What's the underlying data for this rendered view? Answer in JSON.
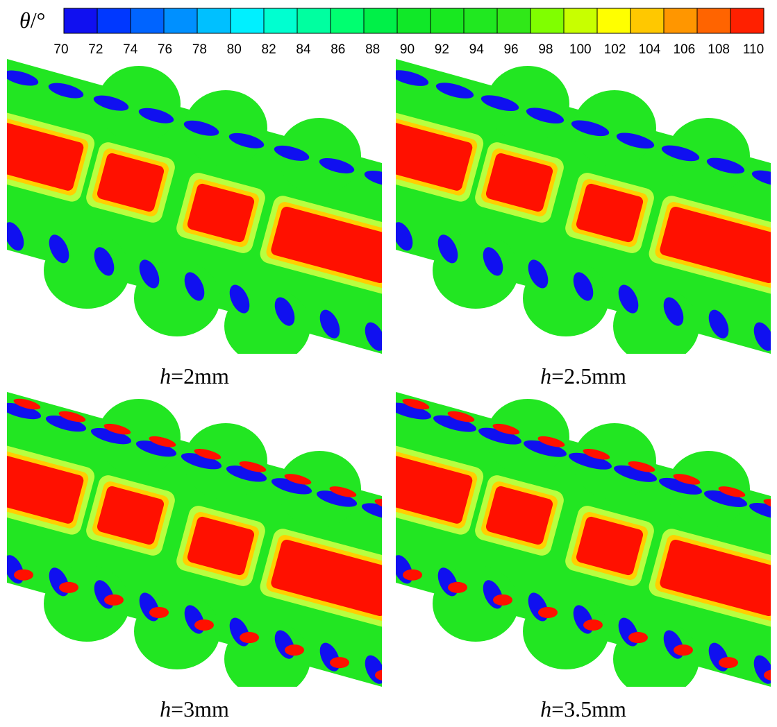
{
  "colorbar": {
    "label": {
      "symbol": "θ",
      "unit": "/°"
    },
    "ticks": [
      70,
      72,
      74,
      76,
      78,
      80,
      82,
      84,
      86,
      88,
      90,
      92,
      94,
      96,
      98,
      100,
      102,
      104,
      106,
      108,
      110
    ],
    "colors": [
      "#1010f0",
      "#0038ff",
      "#0064ff",
      "#0090ff",
      "#00c0ff",
      "#00f0ff",
      "#00ffd0",
      "#00ffa0",
      "#00ff70",
      "#00f048",
      "#10e828",
      "#18e820",
      "#20e820",
      "#30e818",
      "#80ff00",
      "#c8ff00",
      "#ffff00",
      "#ffc800",
      "#ff9600",
      "#ff6400",
      "#ff2000"
    ]
  },
  "panels": [
    {
      "caption": {
        "variable": "h",
        "value": "=2mm"
      }
    },
    {
      "caption": {
        "variable": "h",
        "value": "=2.5mm"
      }
    },
    {
      "caption": {
        "variable": "h",
        "value": "=3mm"
      }
    },
    {
      "caption": {
        "variable": "h",
        "value": "=3.5mm"
      }
    }
  ]
}
